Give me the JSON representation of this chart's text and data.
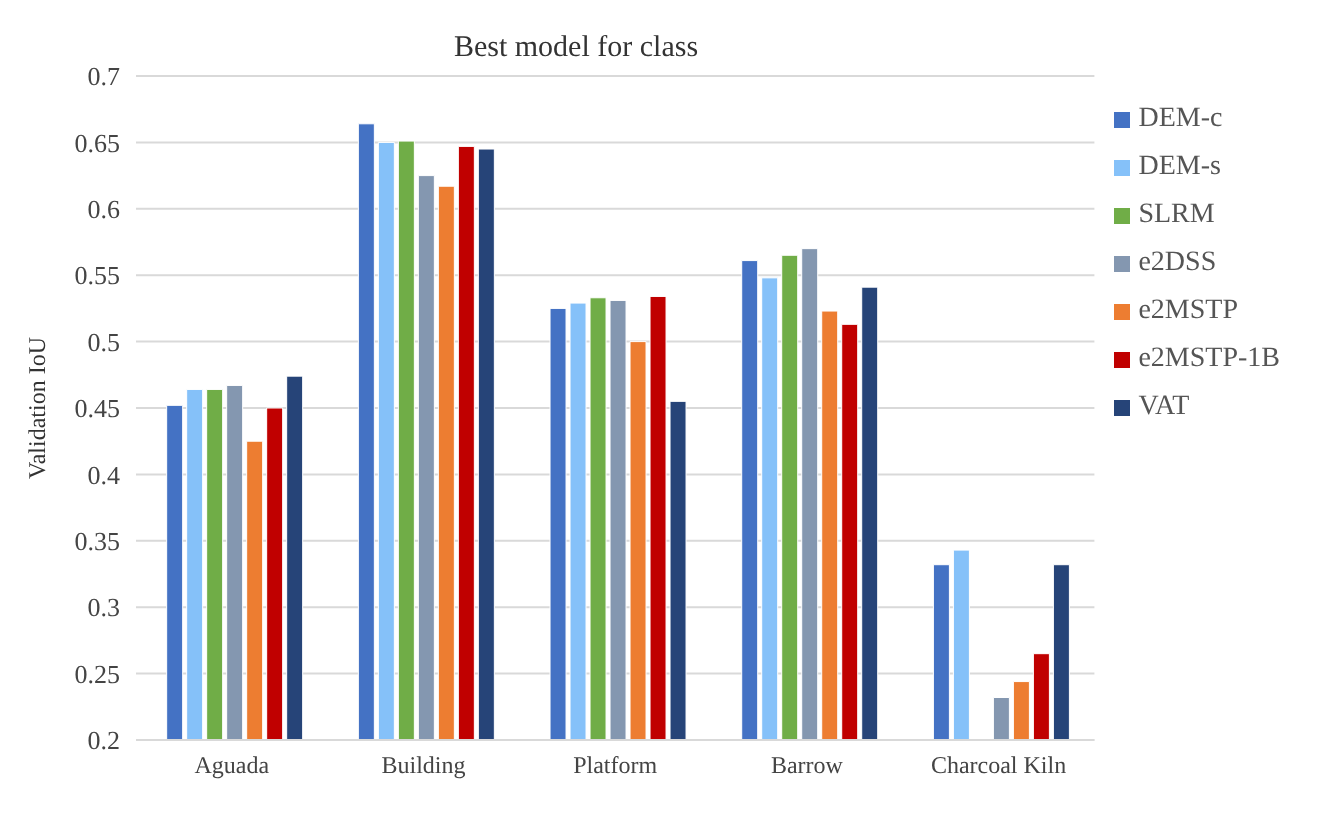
{
  "chart_data": {
    "type": "bar",
    "title": "Best model for class",
    "ylabel": "Validation IoU",
    "categories": [
      "Aguada",
      "Building",
      "Platform",
      "Barrow",
      "Charcoal Kiln"
    ],
    "series": [
      {
        "name": "DEM-c",
        "color": "#4472c4",
        "values": [
          0.452,
          0.664,
          0.525,
          0.561,
          0.332
        ]
      },
      {
        "name": "DEM-s",
        "color": "#85c1f9",
        "values": [
          0.464,
          0.65,
          0.529,
          0.548,
          0.343
        ]
      },
      {
        "name": "SLRM",
        "color": "#70ad47",
        "values": [
          0.464,
          0.651,
          0.533,
          0.565,
          null
        ]
      },
      {
        "name": "e2DSS",
        "color": "#8497b0",
        "values": [
          0.467,
          0.625,
          0.531,
          0.57,
          0.232
        ]
      },
      {
        "name": "e2MSTP",
        "color": "#ed7d31",
        "values": [
          0.425,
          0.617,
          0.5,
          0.523,
          0.244
        ]
      },
      {
        "name": "e2MSTP-1B",
        "color": "#c00000",
        "values": [
          0.45,
          0.647,
          0.534,
          0.513,
          0.265
        ]
      },
      {
        "name": "VAT",
        "color": "#264478",
        "values": [
          0.474,
          0.645,
          0.455,
          0.541,
          0.332
        ]
      }
    ],
    "ylim": [
      0.2,
      0.7
    ],
    "yticks": [
      0.2,
      0.25,
      0.3,
      0.35,
      0.4,
      0.45,
      0.5,
      0.55,
      0.6,
      0.65,
      0.7
    ],
    "grid": "y",
    "legend": "right"
  }
}
